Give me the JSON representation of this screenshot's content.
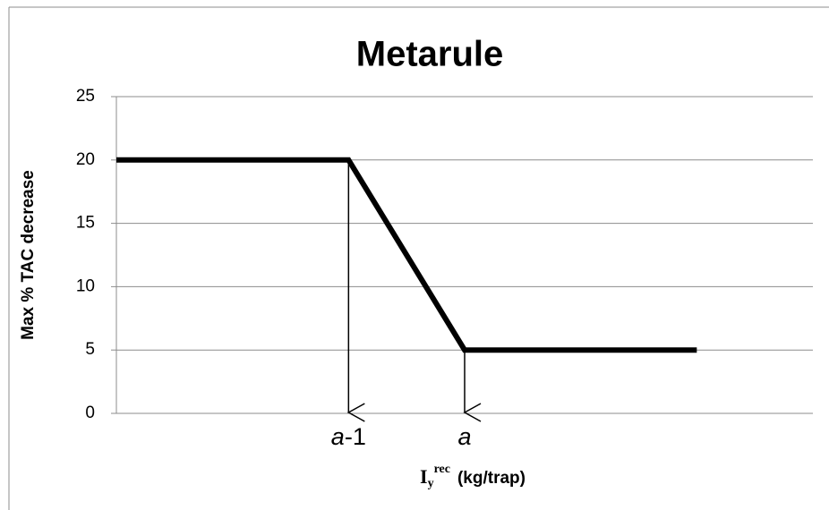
{
  "chart_data": {
    "type": "line",
    "title": "Metarule",
    "ylabel": "Max % TAC decrease",
    "xlabel": {
      "base": "I",
      "sub": "y",
      "sup": "rec",
      "unit": "(kg/trap)"
    },
    "x": [
      0,
      2,
      3,
      5
    ],
    "values": [
      20,
      20,
      5,
      5
    ],
    "color": "#000000",
    "xlim": [
      0,
      6
    ],
    "ylim": [
      0,
      25
    ],
    "yticks": [
      0,
      5,
      10,
      15,
      20,
      25
    ],
    "grid": true,
    "annotations": [
      {
        "x": 2,
        "text": [
          "a",
          "-1"
        ]
      },
      {
        "x": 3,
        "text": [
          "a"
        ]
      }
    ]
  }
}
